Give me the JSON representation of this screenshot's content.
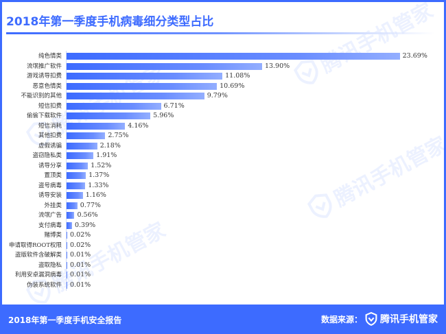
{
  "header": {
    "title": "2018年第一季度手机病毒细分类型占比"
  },
  "watermark": {
    "text": "腾讯手机管家"
  },
  "footer": {
    "left_text": "2018年第一季度手机安全报告",
    "source_label": "数据来源：",
    "brand": "腾讯手机管家"
  },
  "colors": {
    "accent": "#3d6bff",
    "bar_start": "#3d6bff",
    "bar_end": "#93aeff"
  },
  "chart_data": {
    "type": "bar",
    "orientation": "horizontal",
    "title": "2018年第一季度手机病毒细分类型占比",
    "xlabel": "",
    "ylabel": "",
    "unit": "%",
    "grid": false,
    "legend": null,
    "categories": [
      "纯色情类",
      "流氓推广软件",
      "游戏诱导扣费",
      "恶意色情类",
      "不能识别的其他",
      "短信扣费",
      "偷偷下载软件",
      "短信消耗",
      "其他扣费",
      "虚假诱骗",
      "盗窃隐私类",
      "诱导分享",
      "置顶类",
      "盗号病毒",
      "诱导安装",
      "外挂类",
      "流氓广告",
      "支付病毒",
      "赌博类",
      "申请取得ROOT权限",
      "盗版软件含破解类",
      "盗取隐私",
      "利用安卓漏洞病毒",
      "伪装系统软件"
    ],
    "values": [
      23.69,
      13.9,
      11.08,
      10.69,
      9.79,
      6.71,
      5.96,
      4.16,
      2.75,
      2.18,
      1.91,
      1.52,
      1.37,
      1.33,
      1.16,
      0.77,
      0.56,
      0.39,
      0.02,
      0.02,
      0.01,
      0.01,
      0.01,
      0.01
    ],
    "labels": [
      "23.69%",
      "13.90%",
      "11.08%",
      "10.69%",
      "9.79%",
      "6.71%",
      "5.96%",
      "4.16%",
      "2.75%",
      "2.18%",
      "1.91%",
      "1.52%",
      "1.37%",
      "1.33%",
      "1.16%",
      "0.77%",
      "0.56%",
      "0.39%",
      "0.02%",
      "0.02%",
      "0.01%",
      "0.01%",
      "0.01%",
      "0.01%"
    ],
    "xlim": [
      0,
      25
    ]
  }
}
